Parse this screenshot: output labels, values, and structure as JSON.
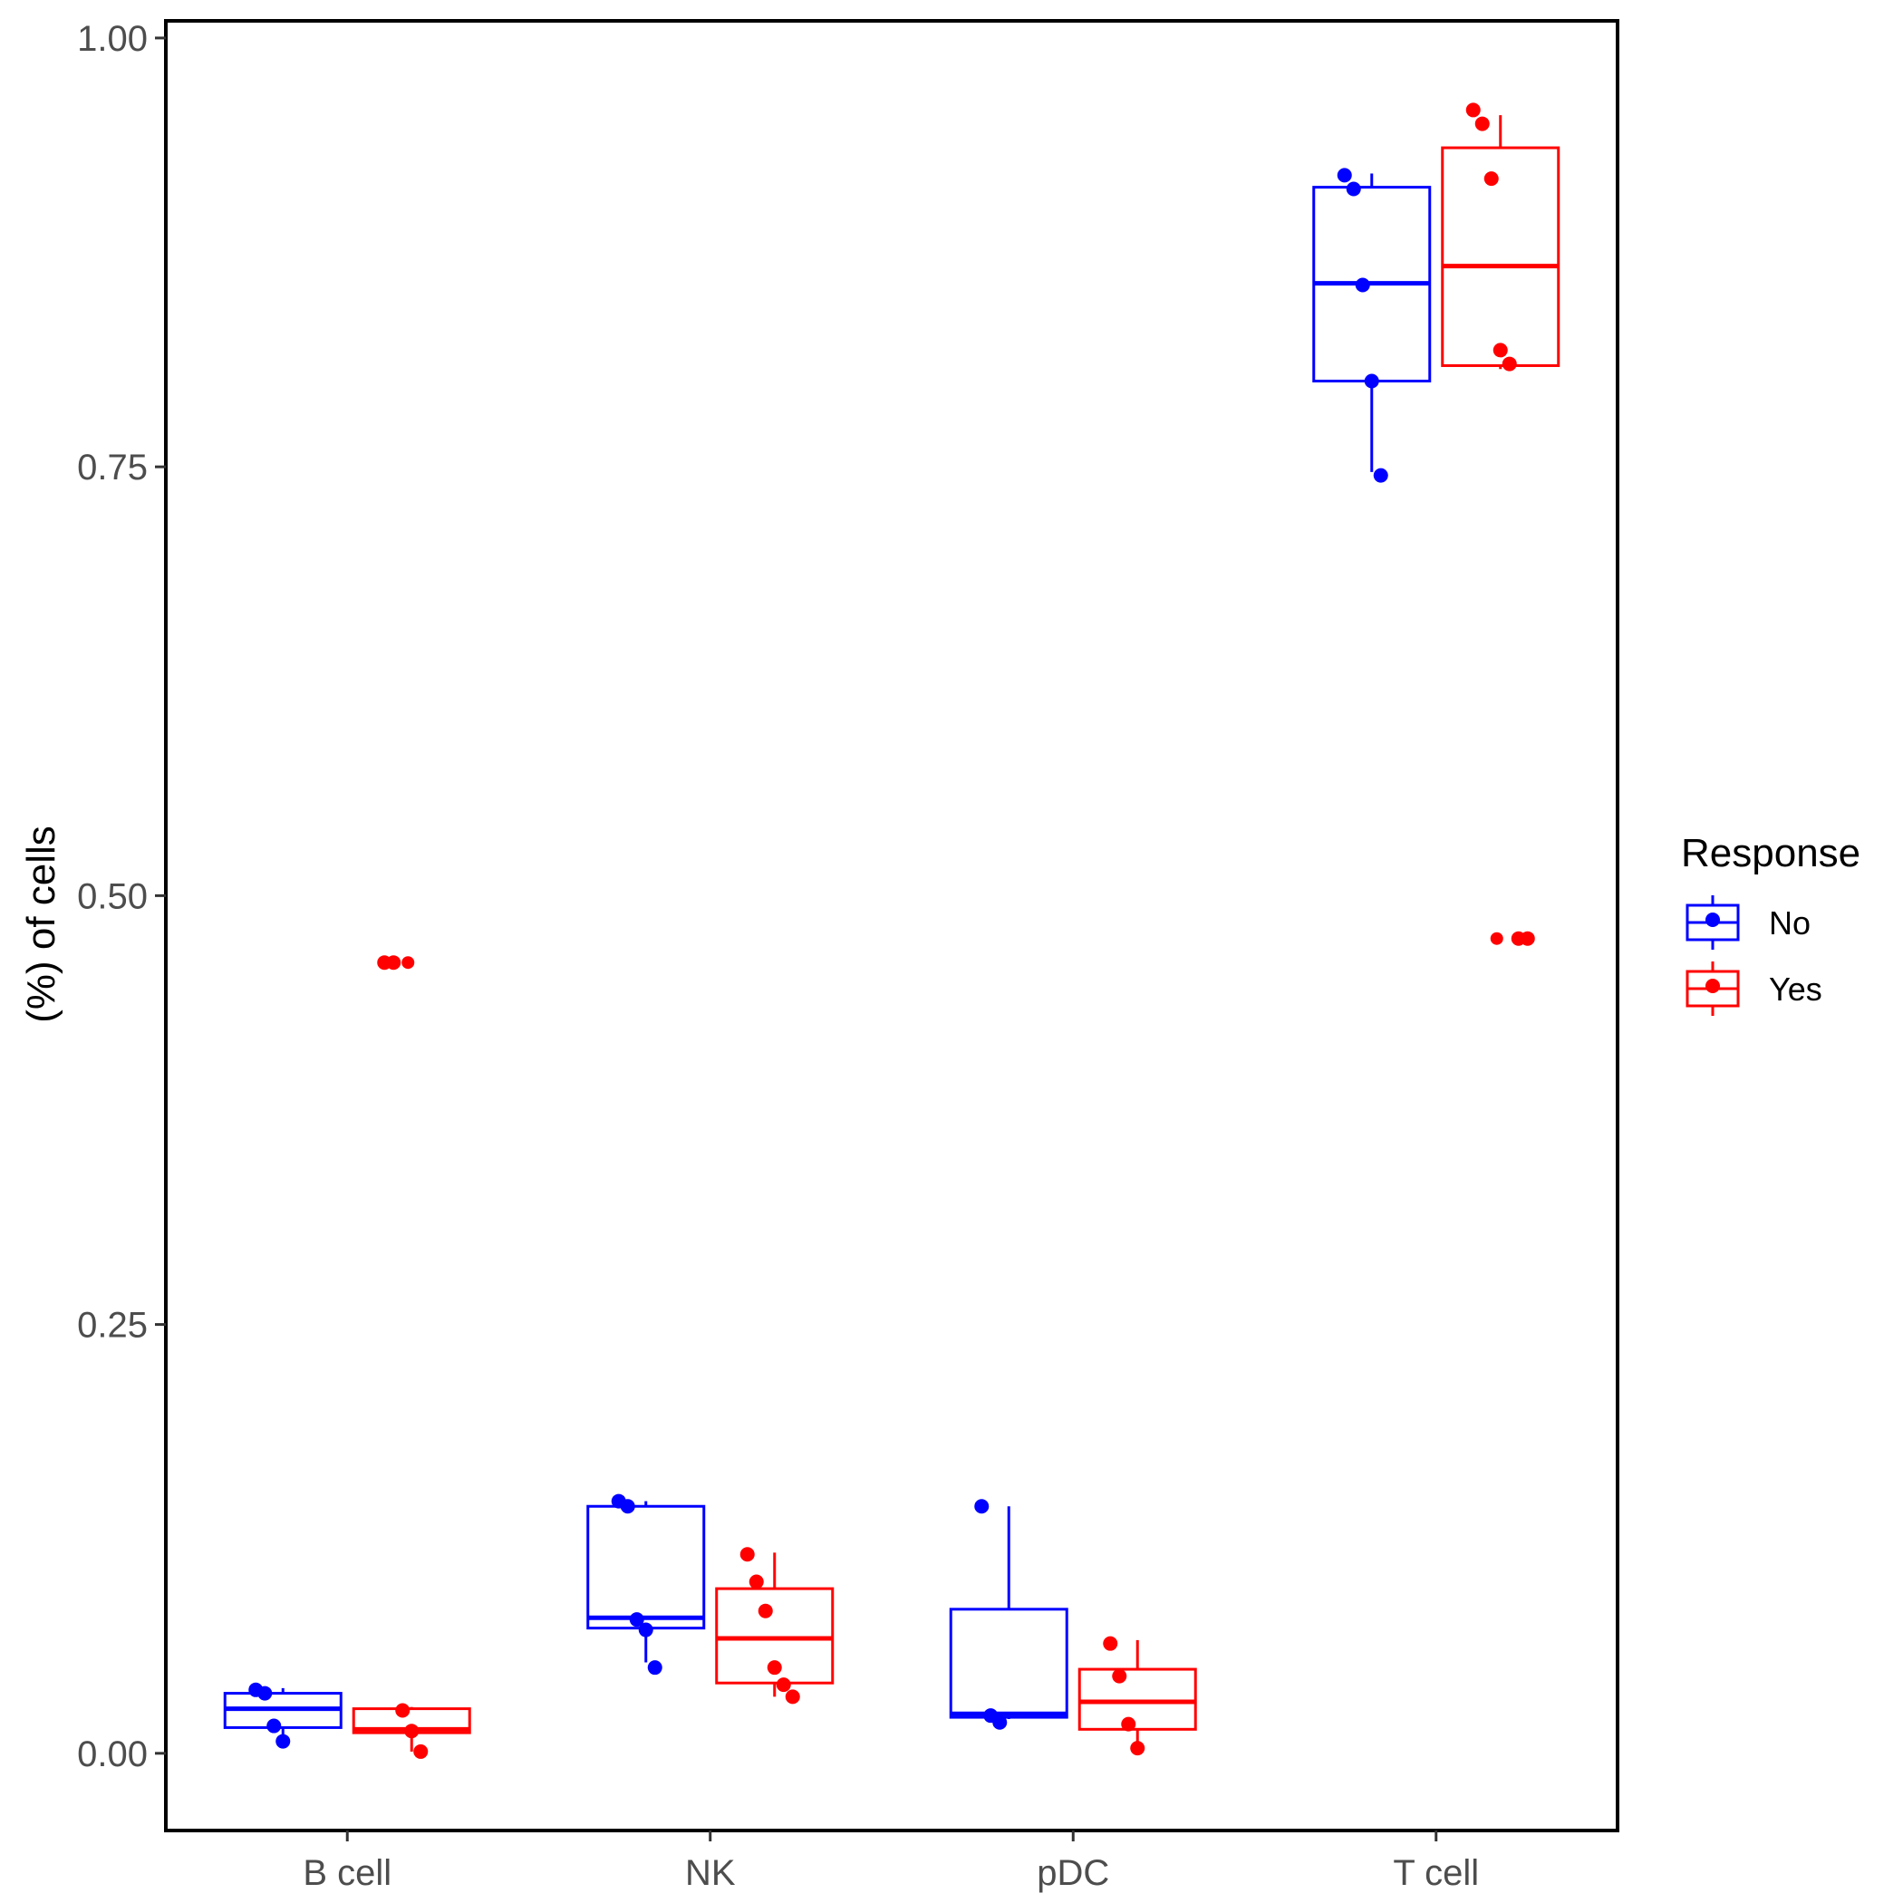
{
  "chart_data": {
    "type": "box",
    "ylabel": "(%) of cells",
    "xlabel": "",
    "categories": [
      "B cell",
      "NK",
      "pDC",
      "T cell"
    ],
    "ylim": [
      -0.045,
      1.01
    ],
    "yticks": [
      0,
      0.25,
      0.5,
      0.75,
      1
    ],
    "ytick_labels": [
      "0.00",
      "0.25",
      "0.50",
      "0.75",
      "1.00"
    ],
    "grid": false,
    "legend": {
      "title": "Response",
      "position": "right",
      "entries": [
        "No",
        "Yes"
      ]
    },
    "series": [
      {
        "name": "No",
        "color": "#0000ff",
        "boxes": [
          {
            "category": "B cell",
            "whisker_low": 0.009,
            "q1": 0.015,
            "median": 0.026,
            "q3": 0.035,
            "whisker_high": 0.038
          },
          {
            "category": "NK",
            "whisker_low": 0.053,
            "q1": 0.073,
            "median": 0.079,
            "q3": 0.144,
            "whisker_high": 0.147
          },
          {
            "category": "pDC",
            "whisker_low": 0.02,
            "q1": 0.021,
            "median": 0.023,
            "q3": 0.084,
            "whisker_high": 0.144
          },
          {
            "category": "T cell",
            "whisker_low": 0.747,
            "q1": 0.8,
            "median": 0.857,
            "q3": 0.913,
            "whisker_high": 0.921
          }
        ],
        "points": [
          {
            "category": "B cell",
            "y": 0.037
          },
          {
            "category": "B cell",
            "y": 0.035
          },
          {
            "category": "B cell",
            "y": 0.016
          },
          {
            "category": "B cell",
            "y": 0.007
          },
          {
            "category": "NK",
            "y": 0.147
          },
          {
            "category": "NK",
            "y": 0.144
          },
          {
            "category": "NK",
            "y": 0.078
          },
          {
            "category": "NK",
            "y": 0.072
          },
          {
            "category": "NK",
            "y": 0.05
          },
          {
            "category": "pDC",
            "y": 0.144
          },
          {
            "category": "pDC",
            "y": 0.022
          },
          {
            "category": "pDC",
            "y": 0.018
          },
          {
            "category": "T cell",
            "y": 0.92
          },
          {
            "category": "T cell",
            "y": 0.912
          },
          {
            "category": "T cell",
            "y": 0.856
          },
          {
            "category": "T cell",
            "y": 0.8
          },
          {
            "category": "T cell",
            "y": 0.745
          }
        ]
      },
      {
        "name": "Yes",
        "color": "#ff0000",
        "boxes": [
          {
            "category": "B cell",
            "whisker_low": 0.001,
            "q1": 0.012,
            "median": 0.014,
            "q3": 0.026,
            "whisker_high": 0.027
          },
          {
            "category": "NK",
            "whisker_low": 0.033,
            "q1": 0.041,
            "median": 0.067,
            "q3": 0.096,
            "whisker_high": 0.117
          },
          {
            "category": "pDC",
            "whisker_low": 0.003,
            "q1": 0.014,
            "median": 0.03,
            "q3": 0.049,
            "whisker_high": 0.066
          },
          {
            "category": "T cell",
            "whisker_low": 0.807,
            "q1": 0.809,
            "median": 0.867,
            "q3": 0.936,
            "whisker_high": 0.955
          }
        ],
        "outliers": [
          {
            "category": "B cell",
            "y": 0.461
          },
          {
            "category": "T cell",
            "y": 0.475
          }
        ],
        "points": [
          {
            "category": "B cell",
            "y": 0.461
          },
          {
            "category": "B cell",
            "y": 0.461
          },
          {
            "category": "B cell",
            "y": 0.025
          },
          {
            "category": "B cell",
            "y": 0.013
          },
          {
            "category": "B cell",
            "y": 0.001
          },
          {
            "category": "NK",
            "y": 0.116
          },
          {
            "category": "NK",
            "y": 0.1
          },
          {
            "category": "NK",
            "y": 0.083
          },
          {
            "category": "NK",
            "y": 0.05
          },
          {
            "category": "NK",
            "y": 0.04
          },
          {
            "category": "NK",
            "y": 0.033
          },
          {
            "category": "pDC",
            "y": 0.064
          },
          {
            "category": "pDC",
            "y": 0.045
          },
          {
            "category": "pDC",
            "y": 0.017
          },
          {
            "category": "pDC",
            "y": 0.003
          },
          {
            "category": "T cell",
            "y": 0.958
          },
          {
            "category": "T cell",
            "y": 0.95
          },
          {
            "category": "T cell",
            "y": 0.918
          },
          {
            "category": "T cell",
            "y": 0.818
          },
          {
            "category": "T cell",
            "y": 0.81
          },
          {
            "category": "T cell",
            "y": 0.475
          },
          {
            "category": "T cell",
            "y": 0.475
          }
        ]
      }
    ]
  }
}
